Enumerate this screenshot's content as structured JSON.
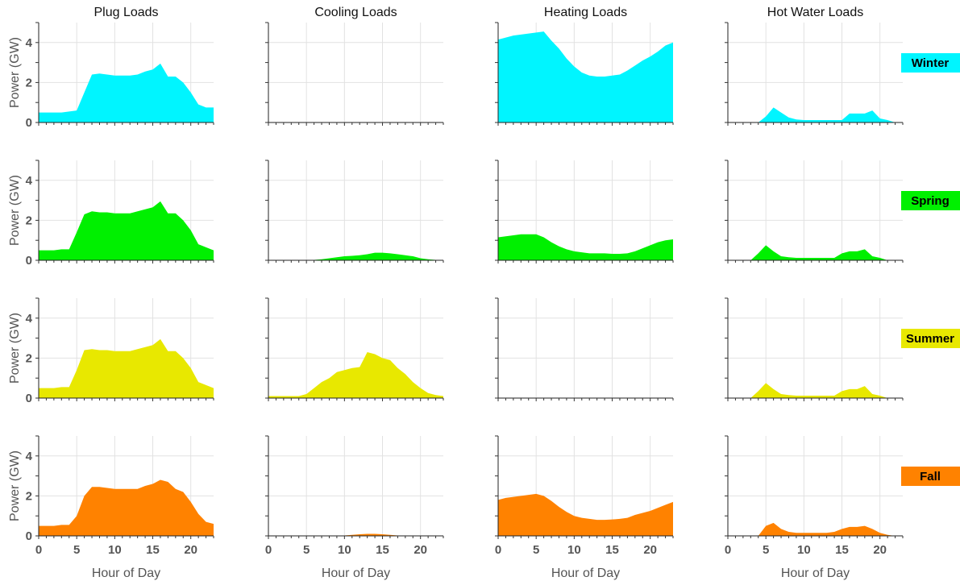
{
  "figure": {
    "column_titles": [
      "Plug Loads",
      "Cooling Loads",
      "Heating Loads",
      "Hot Water Loads"
    ],
    "ylabel": "Power (GW)",
    "xlabel": "Hour of Day"
  },
  "chart_data": {
    "type": "area",
    "layout": "facet-grid 4x4",
    "x": [
      0,
      1,
      2,
      3,
      4,
      5,
      6,
      7,
      8,
      9,
      10,
      11,
      12,
      13,
      14,
      15,
      16,
      17,
      18,
      19,
      20,
      21,
      22,
      23
    ],
    "xlim": [
      0,
      23
    ],
    "ylim": [
      0,
      5
    ],
    "x_ticks": [
      0,
      5,
      10,
      15,
      20
    ],
    "y_ticks": [
      0,
      2,
      4
    ],
    "grid": true,
    "xlabel": "Hour of Day",
    "ylabel": "Power (GW)",
    "columns": [
      "Plug Loads",
      "Cooling Loads",
      "Heating Loads",
      "Hot Water Loads"
    ],
    "rows": [
      {
        "season": "Winter",
        "color": "#00f5ff",
        "series": [
          {
            "values": [
              0.5,
              0.5,
              0.5,
              0.5,
              0.55,
              0.6,
              1.5,
              2.4,
              2.45,
              2.4,
              2.35,
              2.35,
              2.35,
              2.4,
              2.55,
              2.65,
              2.95,
              2.3,
              2.3,
              2.0,
              1.5,
              0.9,
              0.75,
              0.75
            ]
          },
          {
            "values": [
              0,
              0,
              0,
              0,
              0,
              0,
              0,
              0,
              0,
              0,
              0,
              0,
              0,
              0,
              0,
              0,
              0,
              0,
              0,
              0,
              0,
              0,
              0,
              0
            ]
          },
          {
            "values": [
              4.15,
              4.25,
              4.35,
              4.4,
              4.45,
              4.5,
              4.55,
              4.1,
              3.7,
              3.2,
              2.8,
              2.5,
              2.35,
              2.3,
              2.3,
              2.35,
              2.4,
              2.6,
              2.85,
              3.1,
              3.3,
              3.55,
              3.85,
              4.0
            ]
          },
          {
            "values": [
              0,
              0,
              0,
              0,
              0,
              0.3,
              0.75,
              0.5,
              0.25,
              0.15,
              0.12,
              0.12,
              0.12,
              0.12,
              0.12,
              0.12,
              0.45,
              0.45,
              0.45,
              0.6,
              0.2,
              0.12,
              0,
              0
            ]
          }
        ]
      },
      {
        "season": "Spring",
        "color": "#00f000",
        "series": [
          {
            "values": [
              0.5,
              0.5,
              0.5,
              0.55,
              0.55,
              1.4,
              2.3,
              2.45,
              2.4,
              2.4,
              2.35,
              2.35,
              2.35,
              2.45,
              2.55,
              2.65,
              2.95,
              2.35,
              2.35,
              2.0,
              1.5,
              0.8,
              0.65,
              0.5
            ]
          },
          {
            "values": [
              0,
              0,
              0,
              0,
              0,
              0,
              0.02,
              0.05,
              0.1,
              0.15,
              0.2,
              0.22,
              0.25,
              0.3,
              0.38,
              0.38,
              0.35,
              0.3,
              0.25,
              0.2,
              0.1,
              0.05,
              0.02,
              0
            ]
          },
          {
            "values": [
              1.15,
              1.2,
              1.25,
              1.3,
              1.3,
              1.3,
              1.15,
              0.9,
              0.7,
              0.55,
              0.45,
              0.4,
              0.35,
              0.35,
              0.35,
              0.32,
              0.32,
              0.35,
              0.45,
              0.6,
              0.75,
              0.9,
              1.0,
              1.05
            ]
          },
          {
            "values": [
              0,
              0,
              0,
              0,
              0.35,
              0.75,
              0.45,
              0.2,
              0.15,
              0.12,
              0.12,
              0.12,
              0.12,
              0.12,
              0.12,
              0.35,
              0.45,
              0.45,
              0.55,
              0.2,
              0.12,
              0,
              0,
              0
            ]
          }
        ]
      },
      {
        "season": "Summer",
        "color": "#e8e800",
        "series": [
          {
            "values": [
              0.5,
              0.5,
              0.5,
              0.55,
              0.55,
              1.4,
              2.4,
              2.45,
              2.4,
              2.4,
              2.35,
              2.35,
              2.35,
              2.45,
              2.55,
              2.65,
              2.95,
              2.35,
              2.35,
              2.0,
              1.5,
              0.8,
              0.65,
              0.5
            ]
          },
          {
            "values": [
              0.1,
              0.1,
              0.1,
              0.1,
              0.1,
              0.2,
              0.5,
              0.8,
              1.0,
              1.3,
              1.4,
              1.5,
              1.55,
              2.3,
              2.2,
              2.0,
              1.9,
              1.5,
              1.2,
              0.8,
              0.5,
              0.25,
              0.15,
              0.1
            ]
          },
          {
            "values": [
              0,
              0,
              0,
              0,
              0,
              0,
              0,
              0,
              0,
              0,
              0,
              0,
              0,
              0,
              0,
              0,
              0,
              0,
              0,
              0,
              0,
              0,
              0,
              0
            ]
          },
          {
            "values": [
              0,
              0,
              0,
              0,
              0.35,
              0.75,
              0.45,
              0.2,
              0.15,
              0.12,
              0.12,
              0.12,
              0.12,
              0.12,
              0.12,
              0.35,
              0.45,
              0.45,
              0.6,
              0.2,
              0.12,
              0,
              0,
              0
            ]
          }
        ]
      },
      {
        "season": "Fall",
        "color": "#ff8200",
        "series": [
          {
            "values": [
              0.5,
              0.5,
              0.5,
              0.55,
              0.55,
              1.0,
              2.0,
              2.45,
              2.45,
              2.4,
              2.35,
              2.35,
              2.35,
              2.35,
              2.5,
              2.6,
              2.8,
              2.7,
              2.35,
              2.2,
              1.7,
              1.1,
              0.7,
              0.6
            ]
          },
          {
            "values": [
              0,
              0,
              0,
              0,
              0,
              0,
              0,
              0,
              0,
              0,
              0.02,
              0.05,
              0.08,
              0.1,
              0.1,
              0.08,
              0.05,
              0.02,
              0,
              0,
              0,
              0,
              0,
              0
            ]
          },
          {
            "values": [
              1.8,
              1.9,
              1.95,
              2.0,
              2.05,
              2.1,
              2.0,
              1.75,
              1.45,
              1.2,
              1.0,
              0.9,
              0.85,
              0.8,
              0.8,
              0.82,
              0.85,
              0.9,
              1.05,
              1.15,
              1.25,
              1.4,
              1.55,
              1.7
            ]
          },
          {
            "values": [
              0,
              0,
              0,
              0,
              0,
              0.5,
              0.65,
              0.35,
              0.2,
              0.15,
              0.15,
              0.15,
              0.15,
              0.15,
              0.2,
              0.35,
              0.45,
              0.45,
              0.5,
              0.35,
              0.15,
              0.05,
              0,
              0
            ]
          }
        ]
      }
    ]
  }
}
